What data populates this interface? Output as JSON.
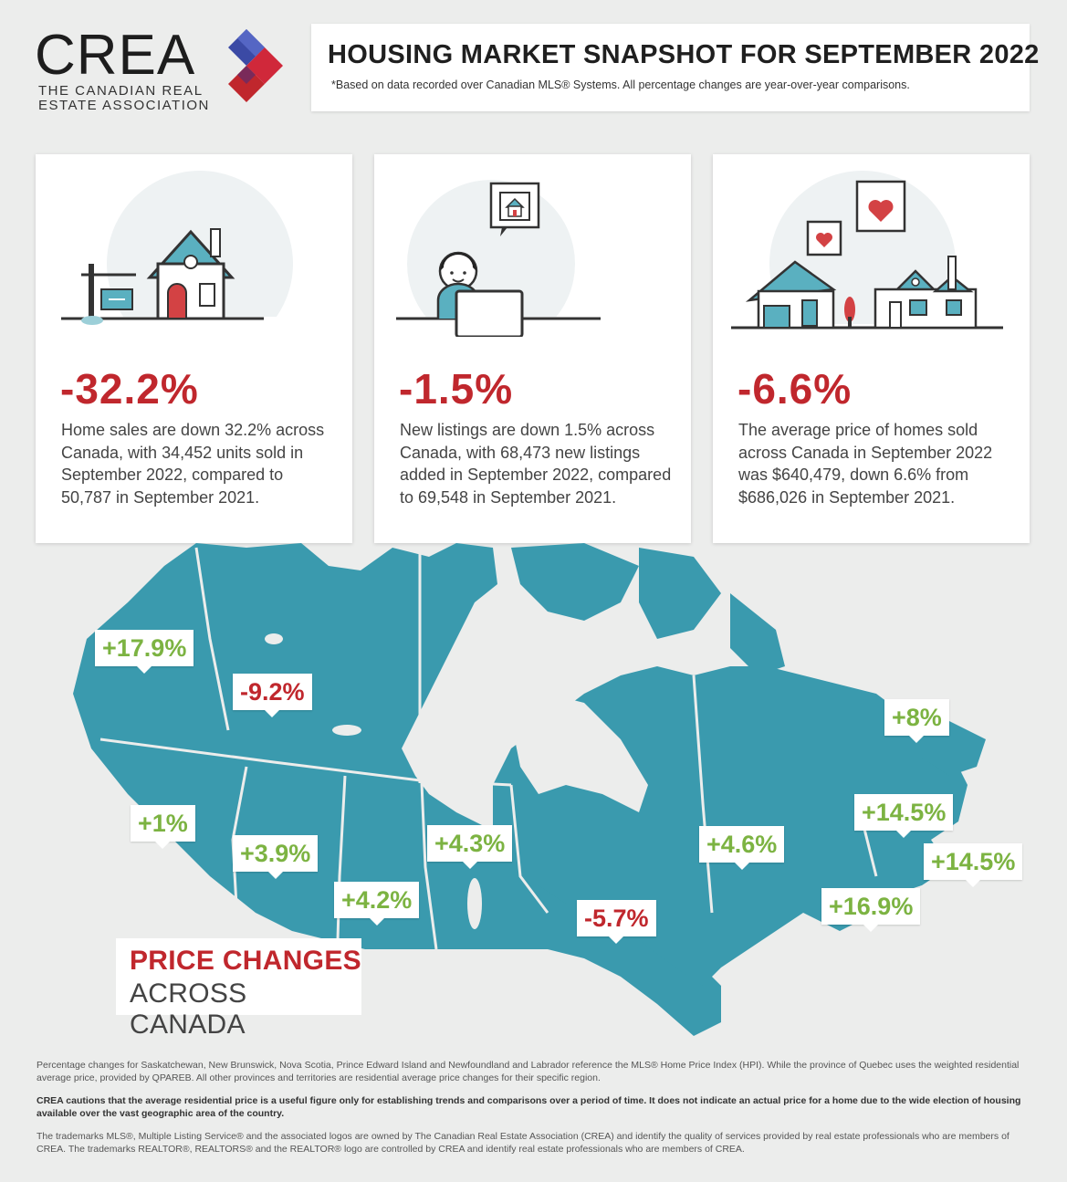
{
  "logo": {
    "wordmark": "CREA",
    "subtitle_line1": "THE CANADIAN REAL",
    "subtitle_line2": "ESTATE ASSOCIATION"
  },
  "header": {
    "title": "HOUSING MARKET SNAPSHOT FOR SEPTEMBER 2022",
    "note": "*Based on data recorded over Canadian MLS® Systems. All percentage changes are year-over-year comparisons."
  },
  "cards": [
    {
      "icon": "house-for-sale-icon",
      "stat": "-32.2%",
      "desc": "Home sales are down 32.2% across Canada, with 34,452 units sold in September 2022, compared to 50,787 in September 2021."
    },
    {
      "icon": "person-computer-listing-icon",
      "stat": "-1.5%",
      "desc": "New listings are down 1.5% across Canada, with 68,473 new listings added in September 2022, compared to 69,548 in September 2021."
    },
    {
      "icon": "houses-hearts-icon",
      "stat": "-6.6%",
      "desc": "The average price of homes sold across Canada in September 2022 was $640,479, down 6.6% from $686,026 in September 2021."
    }
  ],
  "map": {
    "tags": [
      "+17.9%",
      "-9.2%",
      "+8%",
      "+1%",
      "+3.9%",
      "+4.2%",
      "+4.3%",
      "-5.7%",
      "+4.6%",
      "+14.5%",
      "+14.5%",
      "+16.9%"
    ]
  },
  "price_box": {
    "line1": "PRICE CHANGES",
    "line2": "ACROSS CANADA"
  },
  "footer": {
    "p1": "Percentage changes for Saskatchewan, New Brunswick, Nova Scotia, Prince Edward Island and Newfoundland and Labrador reference the MLS® Home Price Index (HPI). While the province of Quebec uses the weighted residential average price, provided by QPAREB. All other provinces and territories are residential average price changes for their specific region.",
    "p2": "CREA cautions that the average residential price is a useful figure only for establishing trends and comparisons over a period of time. It does not indicate an actual price for a home due to the wide election of housing available over the vast geographic area of the country.",
    "p3": "The trademarks MLS®, Multiple Listing Service® and the associated logos are owned by The Canadian Real Estate Association (CREA) and identify the quality of services provided by real estate professionals who are members of CREA. The trademarks REALTOR®, REALTORS® and the REALTOR® logo are controlled by CREA and identify real estate professionals who are members of CREA."
  },
  "colors": {
    "accent_red": "#c0272d",
    "positive_green": "#7cb342",
    "map_teal": "#3a9aae"
  }
}
